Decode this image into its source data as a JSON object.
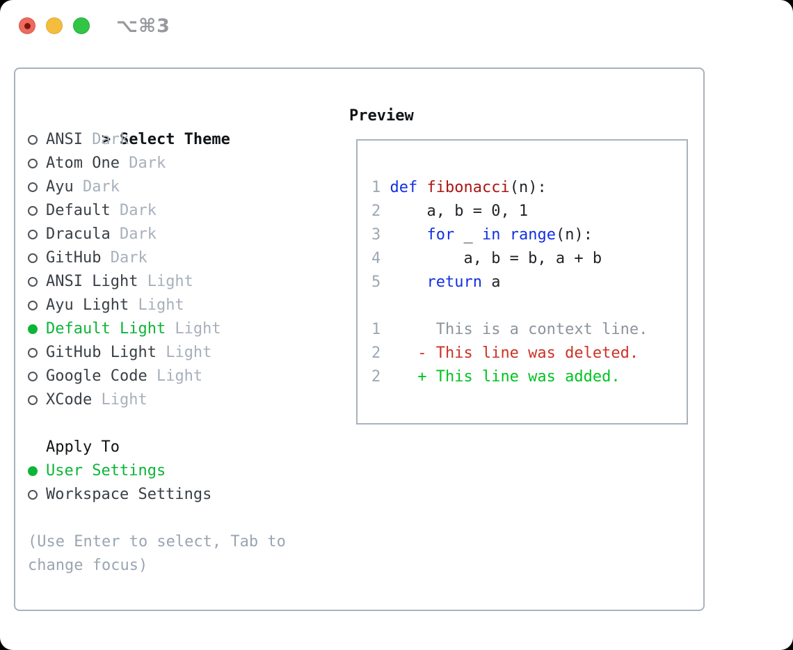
{
  "window": {
    "title": "⌥⌘3"
  },
  "colors": {
    "accent_green": "#0cb537",
    "keyword_blue": "#1330e0",
    "function_red": "#ab1412",
    "diff_deleted_red": "#cc3226",
    "diff_added_green": "#00c322",
    "dim_gray": "#a7b0bb",
    "line_number_gray": "#9da8b5",
    "panel_border": "#a9b2bc",
    "traffic_close": "#ee6a5e",
    "traffic_minimize": "#f5bd3e",
    "traffic_zoom": "#31c545"
  },
  "theme_picker": {
    "cursor": ">",
    "title": "Select Theme",
    "items": [
      {
        "name": "ANSI",
        "tag": "Dark",
        "selected": false
      },
      {
        "name": "Atom One",
        "tag": "Dark",
        "selected": false
      },
      {
        "name": "Ayu",
        "tag": "Dark",
        "selected": false
      },
      {
        "name": "Default",
        "tag": "Dark",
        "selected": false
      },
      {
        "name": "Dracula",
        "tag": "Dark",
        "selected": false
      },
      {
        "name": "GitHub",
        "tag": "Dark",
        "selected": false
      },
      {
        "name": "ANSI Light",
        "tag": "Light",
        "selected": false
      },
      {
        "name": "Ayu Light",
        "tag": "Light",
        "selected": false
      },
      {
        "name": "Default Light",
        "tag": "Light",
        "selected": true
      },
      {
        "name": "GitHub Light",
        "tag": "Light",
        "selected": false
      },
      {
        "name": "Google Code",
        "tag": "Light",
        "selected": false
      },
      {
        "name": "XCode",
        "tag": "Light",
        "selected": false
      }
    ]
  },
  "apply_to": {
    "title": "Apply To",
    "options": [
      {
        "name": "User Settings",
        "selected": true
      },
      {
        "name": "Workspace Settings",
        "selected": false
      }
    ]
  },
  "hint": "(Use Enter to select, Tab to change focus)",
  "preview": {
    "title": "Preview",
    "lines": [
      {
        "tokens": [
          {
            "t": "1 ",
            "c": "num"
          },
          {
            "t": "def ",
            "c": "kw"
          },
          {
            "t": "fibonacci",
            "c": "fn"
          },
          {
            "t": "(n):",
            "c": "pl"
          }
        ]
      },
      {
        "tokens": [
          {
            "t": "2 ",
            "c": "num"
          },
          {
            "t": "    a, b = 0, 1",
            "c": "pl"
          }
        ]
      },
      {
        "tokens": [
          {
            "t": "3 ",
            "c": "num"
          },
          {
            "t": "    ",
            "c": "pl"
          },
          {
            "t": "for",
            "c": "kw"
          },
          {
            "t": " _ ",
            "c": "pl"
          },
          {
            "t": "in",
            "c": "kw"
          },
          {
            "t": " ",
            "c": "pl"
          },
          {
            "t": "range",
            "c": "kw"
          },
          {
            "t": "(n):",
            "c": "pl"
          }
        ]
      },
      {
        "tokens": [
          {
            "t": "4 ",
            "c": "num"
          },
          {
            "t": "        a, b = b, a + b",
            "c": "pl"
          }
        ]
      },
      {
        "tokens": [
          {
            "t": "5 ",
            "c": "num"
          },
          {
            "t": "    ",
            "c": "pl"
          },
          {
            "t": "return",
            "c": "kw"
          },
          {
            "t": " a",
            "c": "pl"
          }
        ]
      },
      {
        "tokens": []
      },
      {
        "tokens": [
          {
            "t": "1 ",
            "c": "num"
          },
          {
            "t": "     This is a context line.",
            "c": "ctx"
          }
        ]
      },
      {
        "tokens": [
          {
            "t": "2 ",
            "c": "num"
          },
          {
            "t": "   - This line was deleted.",
            "c": "del"
          }
        ]
      },
      {
        "tokens": [
          {
            "t": "2 ",
            "c": "num"
          },
          {
            "t": "   + This line was added.",
            "c": "add"
          }
        ]
      }
    ]
  }
}
